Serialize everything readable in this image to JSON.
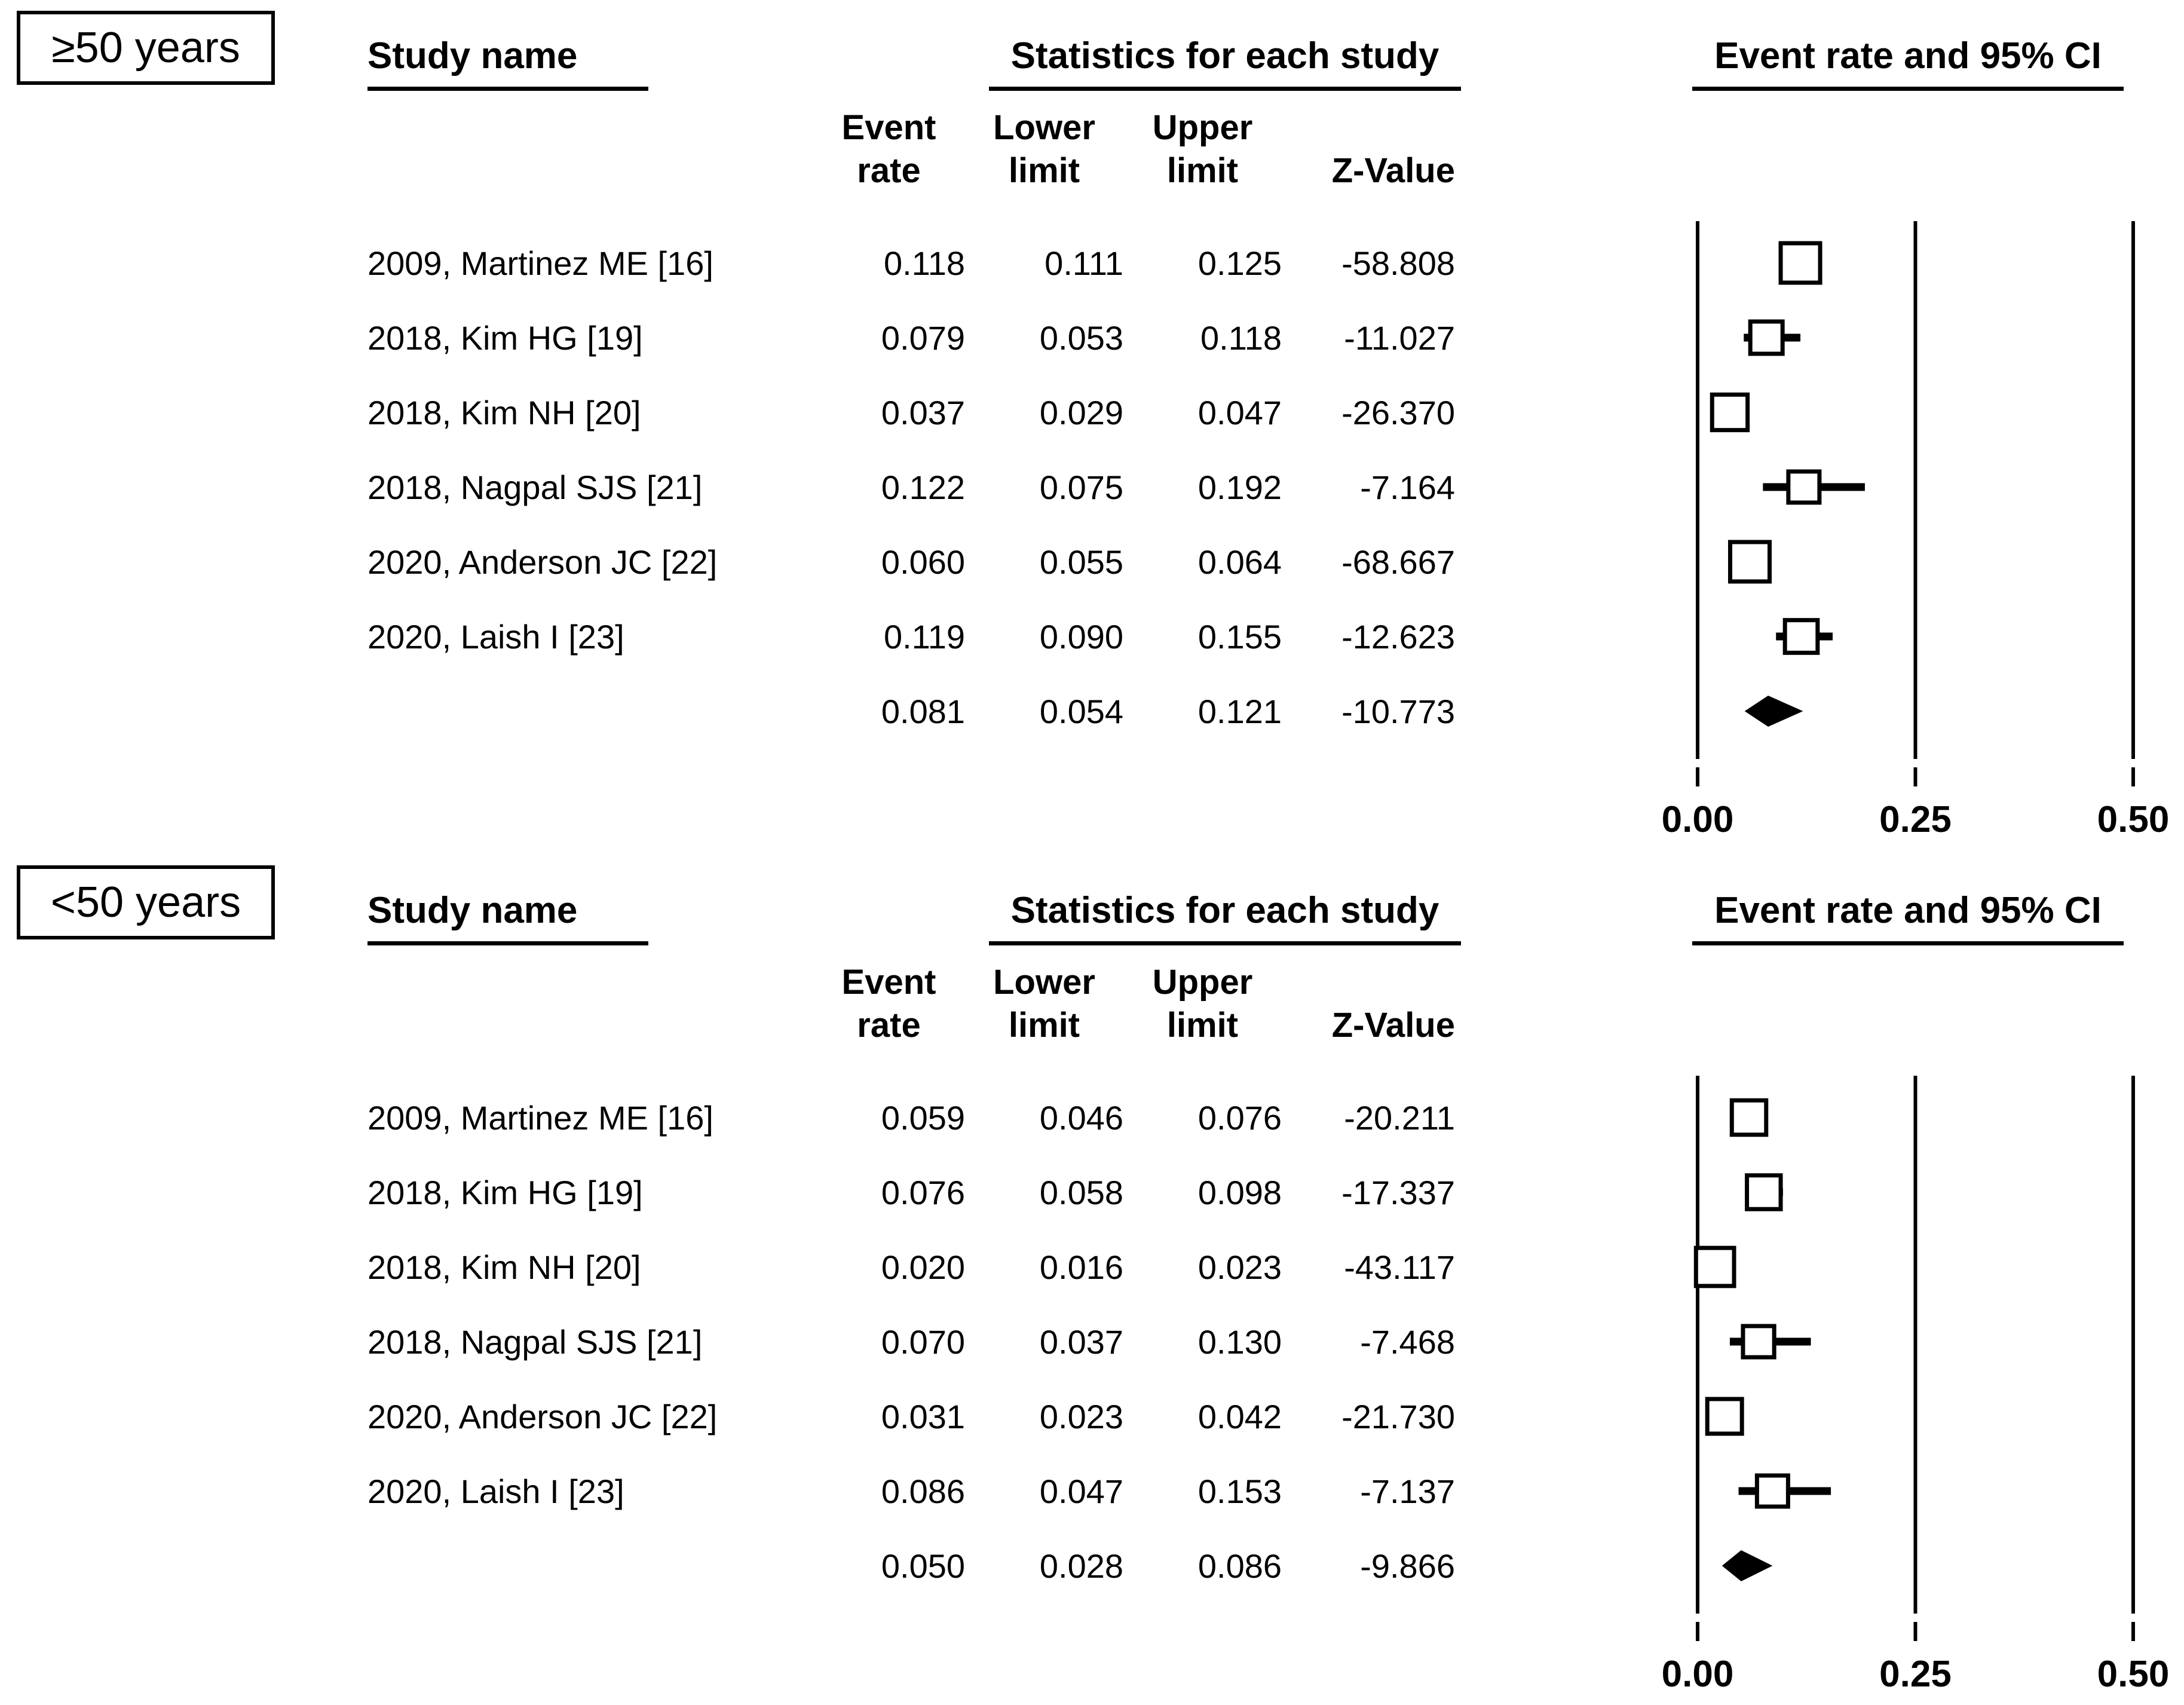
{
  "figure": {
    "description": "Forest plot of event rate and 95% CI by age group",
    "accent_color": "#000000",
    "background_color": "#ffffff"
  },
  "panels": [
    {
      "label": "≥50 years",
      "headers": {
        "study": "Study name",
        "stats": "Statistics for each study",
        "plot": "Event rate and 95% CI",
        "event": [
          "Event",
          "rate"
        ],
        "lower": [
          "Lower",
          "limit"
        ],
        "upper": [
          "Upper",
          "limit"
        ],
        "z": "Z-Value"
      },
      "rows": [
        {
          "name": "2009, Martinez ME [16]",
          "event": "0.118",
          "lower": "0.111",
          "upper": "0.125",
          "z": "-58.808"
        },
        {
          "name": "2018, Kim HG [19]",
          "event": "0.079",
          "lower": "0.053",
          "upper": "0.118",
          "z": "-11.027"
        },
        {
          "name": "2018, Kim NH [20]",
          "event": "0.037",
          "lower": "0.029",
          "upper": "0.047",
          "z": "-26.370"
        },
        {
          "name": "2018, Nagpal SJS [21]",
          "event": "0.122",
          "lower": "0.075",
          "upper": "0.192",
          "z": "-7.164"
        },
        {
          "name": "2020, Anderson JC [22]",
          "event": "0.060",
          "lower": "0.055",
          "upper": "0.064",
          "z": "-68.667"
        },
        {
          "name": "2020, Laish I [23]",
          "event": "0.119",
          "lower": "0.090",
          "upper": "0.155",
          "z": "-12.623"
        }
      ],
      "summary": {
        "name": "",
        "event": "0.081",
        "lower": "0.054",
        "upper": "0.121",
        "z": "-10.773"
      },
      "axis_labels": [
        "0.00",
        "0.25",
        "0.50"
      ],
      "axis_values": [
        0,
        0.25,
        0.5
      ]
    },
    {
      "label": "<50 years",
      "headers": {
        "study": "Study name",
        "stats": "Statistics for each study",
        "plot": "Event rate and 95% CI",
        "event": [
          "Event",
          "rate"
        ],
        "lower": [
          "Lower",
          "limit"
        ],
        "upper": [
          "Upper",
          "limit"
        ],
        "z": "Z-Value"
      },
      "rows": [
        {
          "name": "2009, Martinez ME [16]",
          "event": "0.059",
          "lower": "0.046",
          "upper": "0.076",
          "z": "-20.211"
        },
        {
          "name": "2018, Kim HG [19]",
          "event": "0.076",
          "lower": "0.058",
          "upper": "0.098",
          "z": "-17.337"
        },
        {
          "name": "2018, Kim NH [20]",
          "event": "0.020",
          "lower": "0.016",
          "upper": "0.023",
          "z": "-43.117"
        },
        {
          "name": "2018, Nagpal SJS [21]",
          "event": "0.070",
          "lower": "0.037",
          "upper": "0.130",
          "z": "-7.468"
        },
        {
          "name": "2020, Anderson JC [22]",
          "event": "0.031",
          "lower": "0.023",
          "upper": "0.042",
          "z": "-21.730"
        },
        {
          "name": "2020, Laish I [23]",
          "event": "0.086",
          "lower": "0.047",
          "upper": "0.153",
          "z": "-7.137"
        }
      ],
      "summary": {
        "name": "",
        "event": "0.050",
        "lower": "0.028",
        "upper": "0.086",
        "z": "-9.866"
      },
      "axis_labels": [
        "0.00",
        "0.25",
        "0.50"
      ],
      "axis_values": [
        0,
        0.25,
        0.5
      ]
    }
  ],
  "chart_data": [
    {
      "type": "scatter",
      "variant": "forest-plot",
      "group_label": "≥50 years",
      "title": "Event rate and 95% CI",
      "xlabel": "Event rate",
      "xlim": [
        0,
        0.5
      ],
      "x_ticks": [
        0.0,
        0.25,
        0.5
      ],
      "legend_position": "none",
      "grid": false,
      "studies": [
        "2009, Martinez ME [16]",
        "2018, Kim HG [19]",
        "2018, Kim NH [20]",
        "2018, Nagpal SJS [21]",
        "2020, Anderson JC [22]",
        "2020, Laish I [23]"
      ],
      "series": [
        {
          "name": "Event rate",
          "values": [
            0.118,
            0.079,
            0.037,
            0.122,
            0.06,
            0.119
          ]
        },
        {
          "name": "Lower limit",
          "values": [
            0.111,
            0.053,
            0.029,
            0.075,
            0.055,
            0.09
          ]
        },
        {
          "name": "Upper limit",
          "values": [
            0.125,
            0.118,
            0.047,
            0.192,
            0.064,
            0.155
          ]
        },
        {
          "name": "Z-Value",
          "values": [
            -58.808,
            -11.027,
            -26.37,
            -7.164,
            -68.667,
            -12.623
          ]
        }
      ],
      "summary": {
        "marker": "diamond",
        "event_rate": 0.081,
        "lower": 0.054,
        "upper": 0.121,
        "z": -10.773
      }
    },
    {
      "type": "scatter",
      "variant": "forest-plot",
      "group_label": "<50 years",
      "title": "Event rate and 95% CI",
      "xlabel": "Event rate",
      "xlim": [
        0,
        0.5
      ],
      "x_ticks": [
        0.0,
        0.25,
        0.5
      ],
      "legend_position": "none",
      "grid": false,
      "studies": [
        "2009, Martinez ME [16]",
        "2018, Kim HG [19]",
        "2018, Kim NH [20]",
        "2018, Nagpal SJS [21]",
        "2020, Anderson JC [22]",
        "2020, Laish I [23]"
      ],
      "series": [
        {
          "name": "Event rate",
          "values": [
            0.059,
            0.076,
            0.02,
            0.07,
            0.031,
            0.086
          ]
        },
        {
          "name": "Lower limit",
          "values": [
            0.046,
            0.058,
            0.016,
            0.037,
            0.023,
            0.047
          ]
        },
        {
          "name": "Upper limit",
          "values": [
            0.076,
            0.098,
            0.023,
            0.13,
            0.042,
            0.153
          ]
        },
        {
          "name": "Z-Value",
          "values": [
            -20.211,
            -17.337,
            -43.117,
            -7.468,
            -21.73,
            -7.137
          ]
        }
      ],
      "summary": {
        "marker": "diamond",
        "event_rate": 0.05,
        "lower": 0.028,
        "upper": 0.086,
        "z": -9.866
      }
    }
  ]
}
